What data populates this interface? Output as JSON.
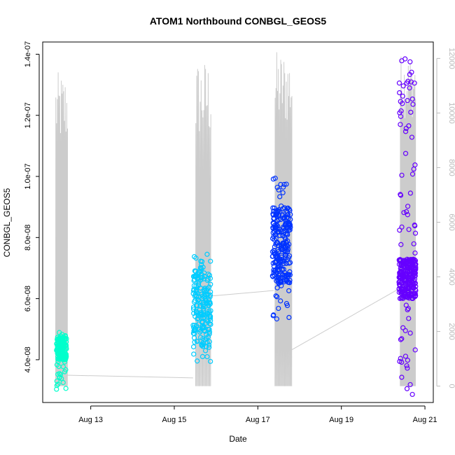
{
  "chart_data": {
    "type": "scatter",
    "title": "ATOM1 Northbound CONBGL_GEOS5",
    "xlabel": "Date",
    "ylabel": "CONBGL_GEOS5",
    "x_ticks": [
      "Aug 13",
      "Aug 15",
      "Aug 17",
      "Aug 19",
      "Aug 21"
    ],
    "x_tick_days": [
      13,
      15,
      17,
      19,
      21
    ],
    "xlim_days": [
      11.85,
      21.2
    ],
    "y_ticks": [
      "4.0e-08",
      "6.0e-08",
      "8.0e-08",
      "1.0e-07",
      "1.2e-07",
      "1.4e-07"
    ],
    "y_tick_values": [
      4e-08,
      6e-08,
      8e-08,
      1e-07,
      1.2e-07,
      1.4e-07
    ],
    "ylim": [
      2.6e-08,
      1.44e-07
    ],
    "right_axis": {
      "label": "",
      "ticks": [
        "0",
        "2000",
        "4000",
        "6000",
        "8000",
        "10000",
        "12000"
      ],
      "tick_values": [
        0,
        2000,
        4000,
        6000,
        8000,
        10000,
        12000
      ],
      "lim": [
        -600,
        12600
      ],
      "color": "#bbbbbb"
    },
    "grid": false,
    "legend": "none",
    "series": [
      {
        "date": "Aug 12",
        "color": "#00ffcc",
        "day_range": [
          12.18,
          12.42
        ],
        "y_range": [
          3e-08,
          4.9e-08
        ],
        "y_core": [
          4e-08,
          4.8e-08
        ],
        "n": 160
      },
      {
        "date": "Aug 15",
        "color": "#00ccff",
        "day_range": [
          15.45,
          15.88
        ],
        "y_range": [
          3.9e-08,
          7.6e-08
        ],
        "y_core": [
          4.4e-08,
          7e-08
        ],
        "n": 200
      },
      {
        "date": "Aug 17",
        "color": "#0033ff",
        "day_range": [
          17.35,
          17.78
        ],
        "y_range": [
          5.3e-08,
          1e-07
        ],
        "y_core": [
          6.5e-08,
          9e-08
        ],
        "n": 260
      },
      {
        "date": "Aug 20",
        "color": "#6600ff",
        "day_range": [
          20.38,
          20.78
        ],
        "y_range": [
          2.7e-08,
          1.41e-07
        ],
        "y_core": [
          6e-08,
          7.3e-08
        ],
        "n": 320
      }
    ],
    "altitude_segments": [
      {
        "day_range": [
          12.15,
          12.45
        ],
        "n": 16,
        "alt_max": [
          8800,
          11500
        ]
      },
      {
        "day_range": [
          15.5,
          15.88
        ],
        "n": 18,
        "alt_max": [
          9000,
          12000
        ]
      },
      {
        "day_range": [
          17.4,
          17.82
        ],
        "n": 22,
        "alt_max": [
          9500,
          12300
        ]
      },
      {
        "day_range": [
          20.4,
          20.78
        ],
        "n": 24,
        "alt_max": [
          9800,
          12200
        ]
      }
    ],
    "altitude_transits": [
      {
        "from": [
          12.42,
          400
        ],
        "to": [
          15.45,
          300
        ]
      },
      {
        "from": [
          15.88,
          3300
        ],
        "to": [
          17.38,
          3500
        ]
      },
      {
        "from": [
          17.78,
          1300
        ],
        "to": [
          20.42,
          3600
        ]
      }
    ]
  }
}
